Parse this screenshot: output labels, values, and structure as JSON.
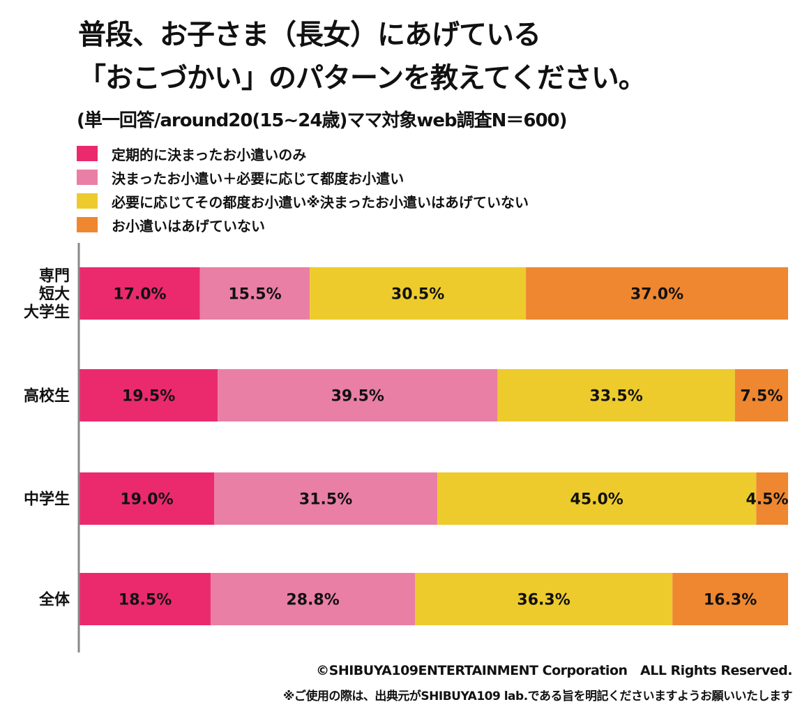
{
  "title_line1": "普段、お子さま（長女）にあげている",
  "title_line2": "「おこづかい」のパターンを教えてください。",
  "subtitle": "(単一回答/around20(15~24歳)ママ対象web調査N＝600)",
  "footer": {
    "copyright": "©SHIBUYA109ENTERTAINMENT Corporation　ALL Rights Reserved.",
    "note": "※ご使用の際は、出典元がSHIBUYA109 lab.である旨を明記くださいますようお願いいたします"
  },
  "chart_data": {
    "type": "bar",
    "orientation": "horizontal",
    "stacked": true,
    "percent": true,
    "title": "普段、お子さま（長女）にあげている「おこづかい」のパターンを教えてください。",
    "subtitle": "(単一回答/around20(15~24歳)ママ対象web調査N＝600)",
    "xlabel": "",
    "ylabel": "",
    "xlim": [
      0,
      100
    ],
    "grid": false,
    "legend_position": "top-left",
    "categories": [
      "専門\n短大\n大学生",
      "高校生",
      "中学生",
      "全体"
    ],
    "category_lines": [
      [
        "専門",
        "短大",
        "大学生"
      ],
      [
        "高校生"
      ],
      [
        "中学生"
      ],
      [
        "全体"
      ]
    ],
    "series": [
      {
        "name": "定期的に決まったお小遣いのみ",
        "color": "#EB2A6E",
        "values": [
          17.0,
          19.5,
          19.0,
          18.5
        ],
        "labels": [
          "17.0%",
          "19.5%",
          "19.0%",
          "18.5%"
        ]
      },
      {
        "name": "決まったお小遣い＋必要に応じて都度お小遣い",
        "color": "#E97FA4",
        "values": [
          15.5,
          39.5,
          31.5,
          28.8
        ],
        "labels": [
          "15.5%",
          "39.5%",
          "31.5%",
          "28.8%"
        ]
      },
      {
        "name": "必要に応じてその都度お小遣い※決まったお小遣いはあげていない",
        "color": "#EDCB2C",
        "values": [
          30.5,
          33.5,
          45.0,
          36.3
        ],
        "labels": [
          "30.5%",
          "33.5%",
          "45.0%",
          "36.3%"
        ]
      },
      {
        "name": "お小遣いはあげていない",
        "color": "#EE8730",
        "values": [
          37.0,
          7.5,
          4.5,
          16.3
        ],
        "labels": [
          "37.0%",
          "7.5%",
          "4.5%",
          "16.3%"
        ]
      }
    ]
  }
}
